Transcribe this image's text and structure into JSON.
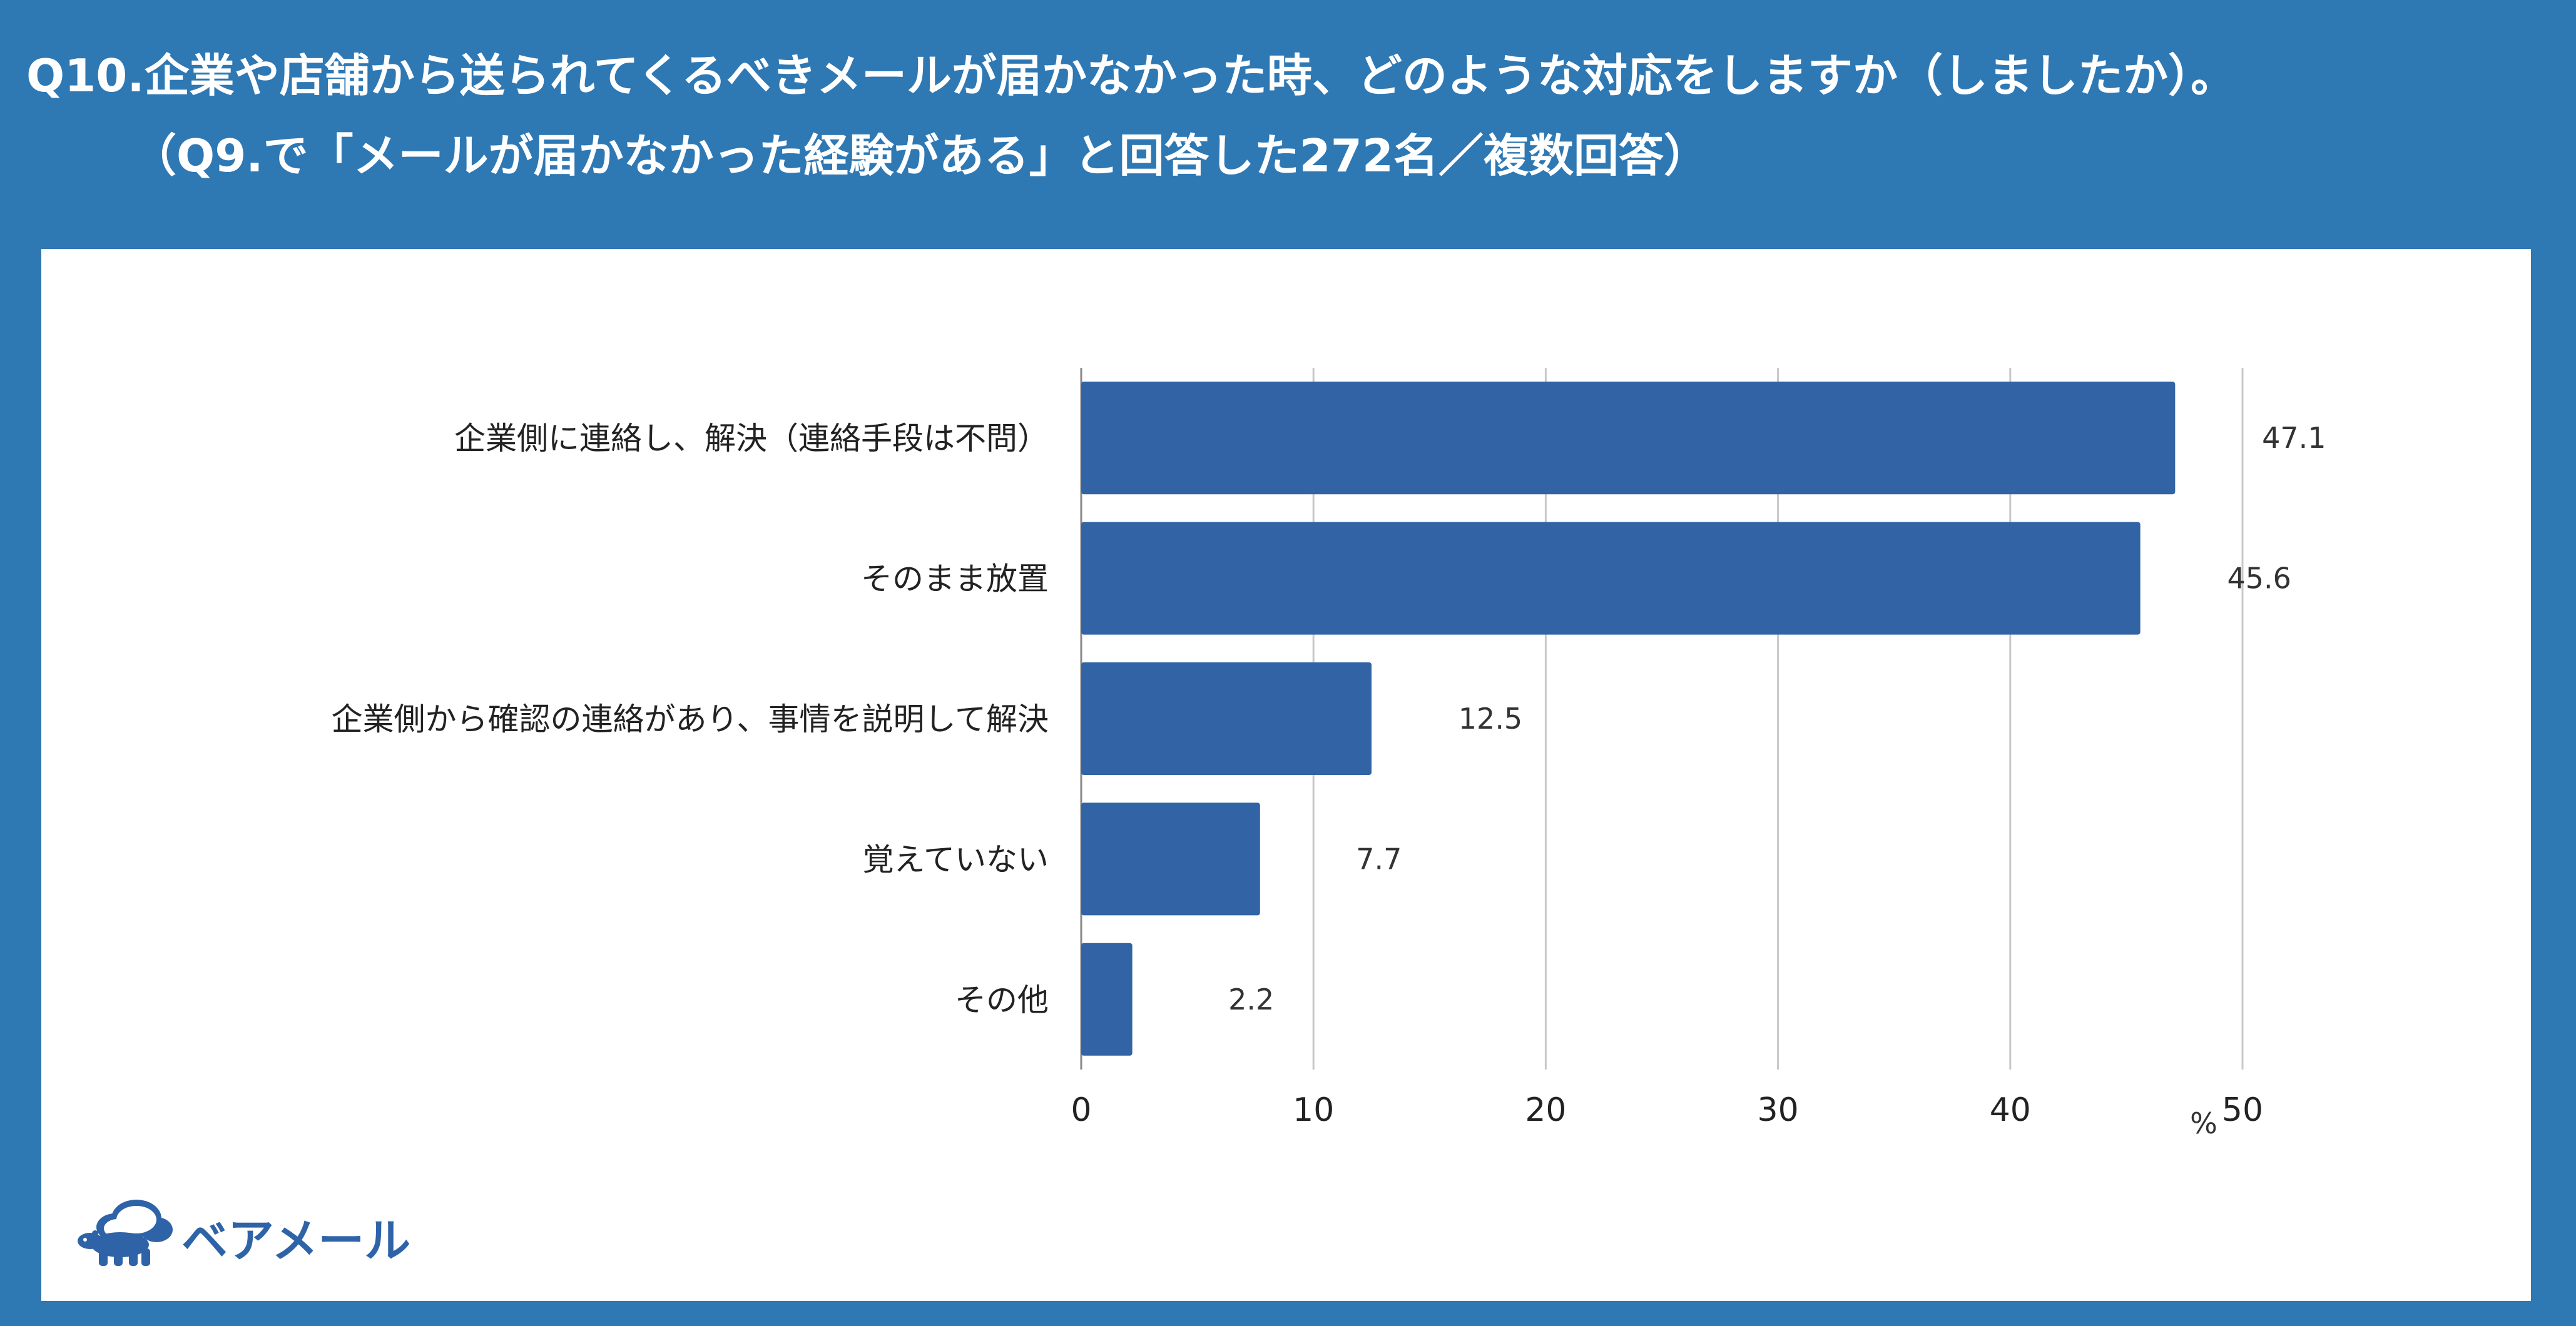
{
  "header": {
    "title_line1": "Q10.企業や店舗から送られてくるべきメールが届かなかった時、どのような対応をしますか（しましたか）。",
    "title_line2": "（Q9.で「メールが届かなかった経験がある」と回答した272名／複数回答）"
  },
  "brand": {
    "name": "ベアメール",
    "logo_icon": "bear-cloud-icon",
    "color": "#2f63a8"
  },
  "chart_data": {
    "type": "bar",
    "orientation": "horizontal",
    "categories": [
      "企業側に連絡し、解決（連絡手段は不問）",
      "そのまま放置",
      "企業側から確認の連絡があり、事情を説明して解決",
      "覚えていない",
      "その他"
    ],
    "values": [
      47.1,
      45.6,
      12.5,
      7.7,
      2.2
    ],
    "value_labels": [
      "47.1",
      "45.6",
      "12.5",
      "7.7",
      "2.2"
    ],
    "xlim": [
      0,
      50
    ],
    "xticks": [
      "0",
      "10",
      "20",
      "30",
      "40",
      "50"
    ],
    "xticks_values": [
      0,
      10,
      20,
      30,
      40,
      50
    ],
    "unit": "%",
    "grid": true,
    "bar_color": "#3263a5",
    "grid_color": "#c8c8c8"
  }
}
